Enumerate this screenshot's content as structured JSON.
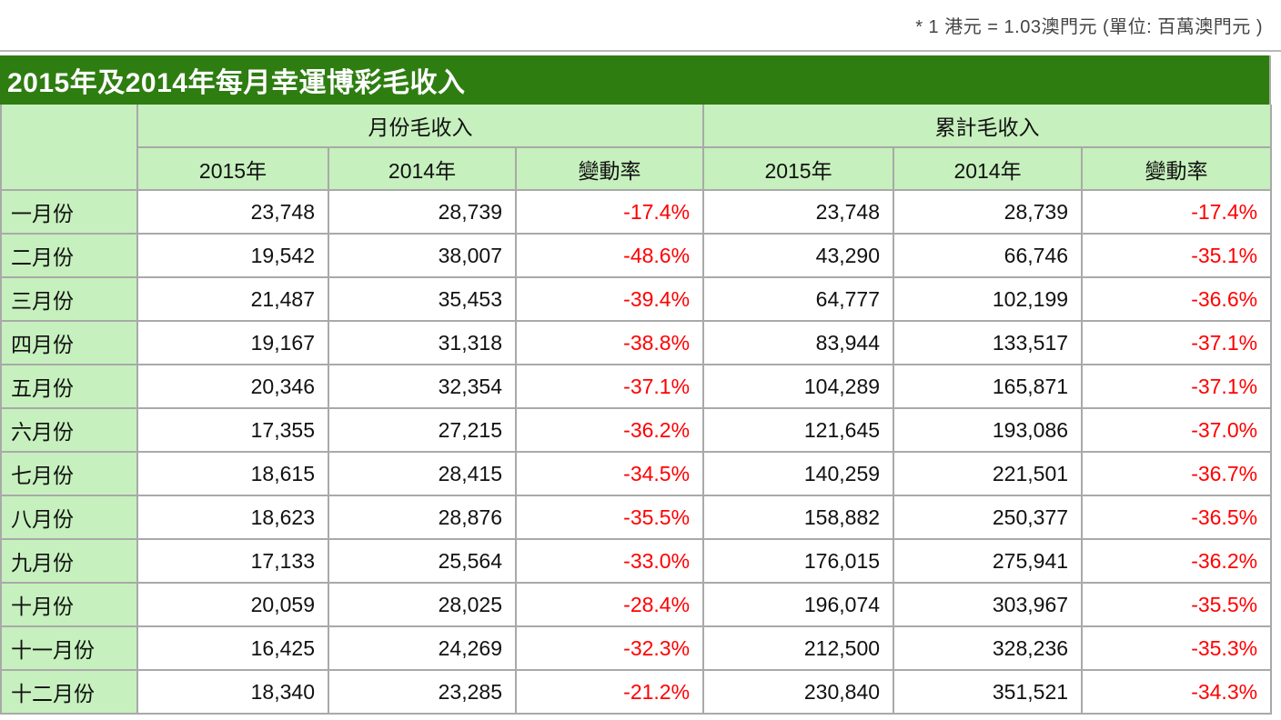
{
  "note": "* 1 港元 = 1.03澳門元 (單位: 百萬澳門元 )",
  "title": "2015年及2014年每月幸運博彩毛收入",
  "table": {
    "corner_label": "",
    "groups": {
      "monthly": "月份毛收入",
      "cumulative": "累計毛收入"
    },
    "columns": {
      "y2015": "2015年",
      "y2014": "2014年",
      "change": "變動率"
    },
    "rows": [
      {
        "month": "一月份",
        "monthly": [
          "23,748",
          "28,739",
          "-17.4%"
        ],
        "cumulative": [
          "23,748",
          "28,739",
          "-17.4%"
        ]
      },
      {
        "month": "二月份",
        "monthly": [
          "19,542",
          "38,007",
          "-48.6%"
        ],
        "cumulative": [
          "43,290",
          "66,746",
          "-35.1%"
        ]
      },
      {
        "month": "三月份",
        "monthly": [
          "21,487",
          "35,453",
          "-39.4%"
        ],
        "cumulative": [
          "64,777",
          "102,199",
          "-36.6%"
        ]
      },
      {
        "month": "四月份",
        "monthly": [
          "19,167",
          "31,318",
          "-38.8%"
        ],
        "cumulative": [
          "83,944",
          "133,517",
          "-37.1%"
        ]
      },
      {
        "month": "五月份",
        "monthly": [
          "20,346",
          "32,354",
          "-37.1%"
        ],
        "cumulative": [
          "104,289",
          "165,871",
          "-37.1%"
        ]
      },
      {
        "month": "六月份",
        "monthly": [
          "17,355",
          "27,215",
          "-36.2%"
        ],
        "cumulative": [
          "121,645",
          "193,086",
          "-37.0%"
        ]
      },
      {
        "month": "七月份",
        "monthly": [
          "18,615",
          "28,415",
          "-34.5%"
        ],
        "cumulative": [
          "140,259",
          "221,501",
          "-36.7%"
        ]
      },
      {
        "month": "八月份",
        "monthly": [
          "18,623",
          "28,876",
          "-35.5%"
        ],
        "cumulative": [
          "158,882",
          "250,377",
          "-36.5%"
        ]
      },
      {
        "month": "九月份",
        "monthly": [
          "17,133",
          "25,564",
          "-33.0%"
        ],
        "cumulative": [
          "176,015",
          "275,941",
          "-36.2%"
        ]
      },
      {
        "month": "十月份",
        "monthly": [
          "20,059",
          "28,025",
          "-28.4%"
        ],
        "cumulative": [
          "196,074",
          "303,967",
          "-35.5%"
        ]
      },
      {
        "month": "十一月份",
        "monthly": [
          "16,425",
          "24,269",
          "-32.3%"
        ],
        "cumulative": [
          "212,500",
          "328,236",
          "-35.3%"
        ]
      },
      {
        "month": "十二月份",
        "monthly": [
          "18,340",
          "23,285",
          "-21.2%"
        ],
        "cumulative": [
          "230,840",
          "351,521",
          "-34.3%"
        ]
      }
    ]
  },
  "colors": {
    "title-bg": "#2e7d11",
    "title-fg": "#ffffff",
    "header-bg": "#c6f0bd",
    "border": "#a9a9a9",
    "negative": "#ff0000",
    "note-fg": "#444444",
    "text": "#111111"
  }
}
